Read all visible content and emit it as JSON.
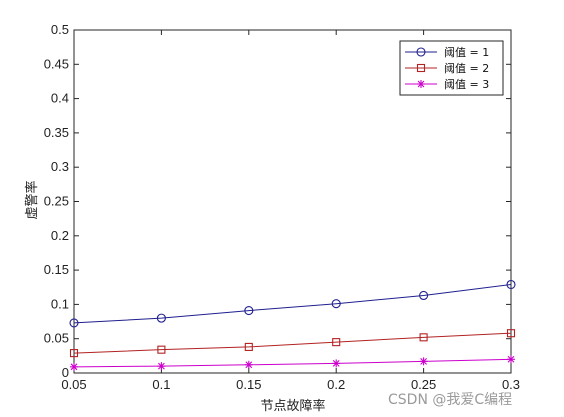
{
  "chart_data": {
    "type": "line",
    "x": [
      0.05,
      0.1,
      0.15,
      0.2,
      0.25,
      0.3
    ],
    "series": [
      {
        "name": "阈值 = 1",
        "values": [
          0.073,
          0.08,
          0.091,
          0.101,
          0.113,
          0.129
        ],
        "color": "#1f1f8f",
        "marker": "circle"
      },
      {
        "name": "阈值 = 2",
        "values": [
          0.029,
          0.034,
          0.038,
          0.045,
          0.052,
          0.058
        ],
        "color": "#b22222",
        "marker": "square"
      },
      {
        "name": "阈值 = 3",
        "values": [
          0.009,
          0.01,
          0.012,
          0.014,
          0.017,
          0.02
        ],
        "color": "#cc00cc",
        "marker": "star"
      }
    ],
    "xlabel": "节点故障率",
    "ylabel": "虚警率",
    "xlim": [
      0.05,
      0.3
    ],
    "ylim": [
      0,
      0.5
    ],
    "xticks": [
      "0.05",
      "0.1",
      "0.15",
      "0.2",
      "0.25",
      "0.3"
    ],
    "yticks": [
      "0",
      "0.05",
      "0.1",
      "0.15",
      "0.2",
      "0.25",
      "0.3",
      "0.35",
      "0.4",
      "0.45",
      "0.5"
    ],
    "grid": false,
    "legend_position": "top-right"
  },
  "watermark": "CSDN @我爱C编程"
}
